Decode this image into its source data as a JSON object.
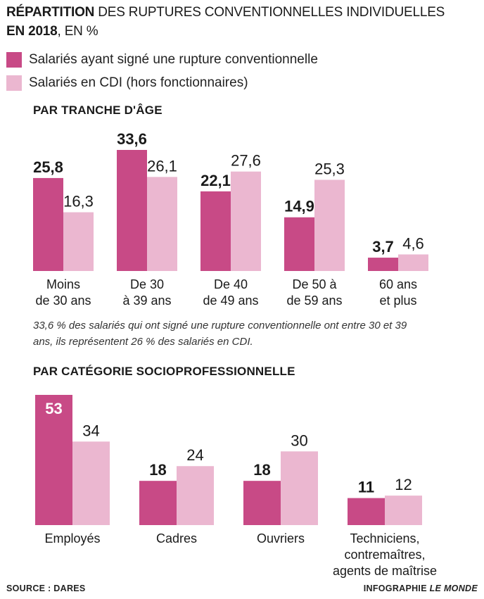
{
  "header": {
    "title_bold": "Répartition",
    "title_rest": " des ruptures conventionnelles individuelles",
    "subtitle_bold": "en 2018",
    "subtitle_rest": ", en %"
  },
  "legend": [
    {
      "label": "Salariés ayant signé une rupture conventionnelle",
      "color": "#c84a86"
    },
    {
      "label": "Salariés en CDI (hors fonctionnaires)",
      "color": "#ebb7d0"
    }
  ],
  "note": "33,6 % des salariés qui ont signé une rupture conventionnelle ont entre 30 et 39 ans, ils représentent 26 % des salariés en CDI.",
  "footer": {
    "source": "SOURCE : DARES",
    "credit_prefix": "INFOGRAPHIE ",
    "credit_name": "LE MONDE"
  },
  "chart_data": [
    {
      "type": "bar",
      "title": "Par tranche d'âge",
      "categories": [
        "Moins de 30 ans",
        "De 30 à 39 ans",
        "De 40 à 49 ans",
        "De 50 à 59 ans",
        "60 ans et plus"
      ],
      "category_lines": [
        [
          "Moins",
          "de 30 ans"
        ],
        [
          "De 30",
          "à 39 ans"
        ],
        [
          "De 40",
          "de 49 ans"
        ],
        [
          "De 50 à",
          "de 59 ans"
        ],
        [
          "60 ans",
          "et plus"
        ]
      ],
      "series": [
        {
          "name": "Salariés ayant signé une rupture conventionnelle",
          "values": [
            25.8,
            33.6,
            22.1,
            14.9,
            3.7
          ],
          "labels": [
            "25,8",
            "33,6",
            "22,1",
            "14,9",
            "3,7"
          ],
          "color": "#c84a86"
        },
        {
          "name": "Salariés en CDI (hors fonctionnaires)",
          "values": [
            16.3,
            26.1,
            27.6,
            25.3,
            4.6
          ],
          "labels": [
            "16,3",
            "26,1",
            "27,6",
            "25,3",
            "4,6"
          ],
          "color": "#ebb7d0"
        }
      ],
      "ylim": [
        0,
        33.6
      ],
      "xlabel": "",
      "ylabel": ""
    },
    {
      "type": "bar",
      "title": "Par catégorie socioprofessionnelle",
      "categories": [
        "Employés",
        "Cadres",
        "Ouvriers",
        "Techniciens, contremaîtres, agents de maîtrise"
      ],
      "category_lines": [
        [
          "Employés"
        ],
        [
          "Cadres"
        ],
        [
          "Ouvriers"
        ],
        [
          "Techniciens,",
          "contremaîtres,",
          "agents de maîtrise"
        ]
      ],
      "series": [
        {
          "name": "Salariés ayant signé une rupture conventionnelle",
          "values": [
            53,
            18,
            18,
            11
          ],
          "labels": [
            "53",
            "18",
            "18",
            "11"
          ],
          "color": "#c84a86"
        },
        {
          "name": "Salariés en CDI (hors fonctionnaires)",
          "values": [
            34,
            24,
            30,
            12
          ],
          "labels": [
            "34",
            "24",
            "30",
            "12"
          ],
          "color": "#ebb7d0"
        }
      ],
      "ylim": [
        0,
        53
      ],
      "xlabel": "",
      "ylabel": ""
    }
  ]
}
